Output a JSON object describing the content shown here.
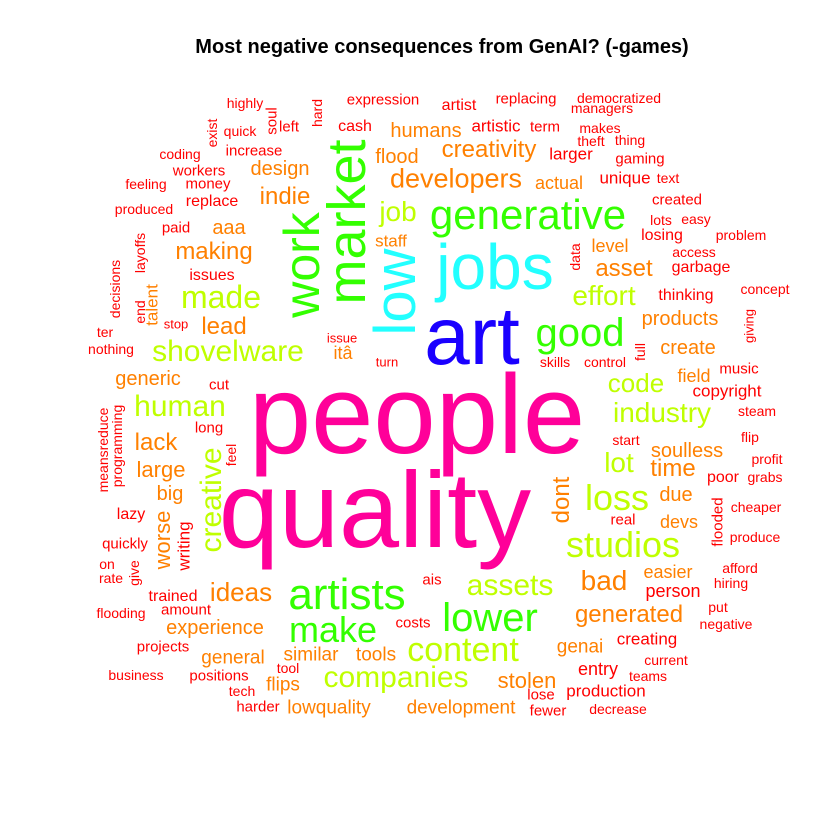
{
  "chart_data": {
    "type": "wordcloud",
    "title": "Most negative consequences from GenAI? (-games)",
    "palette": {
      "red": "#ff0000",
      "orange": "#ff8000",
      "lime": "#bfff00",
      "green": "#33ff00",
      "cyan": "#22ffff",
      "blue": "#1a00ff",
      "magenta": "#ff0099"
    },
    "words": [
      {
        "text": "people",
        "color": "magenta",
        "size": 112
      },
      {
        "text": "quality",
        "color": "magenta",
        "size": 108
      },
      {
        "text": "art",
        "color": "blue",
        "size": 82
      },
      {
        "text": "jobs",
        "color": "cyan",
        "size": 64
      },
      {
        "text": "low",
        "color": "cyan",
        "size": 58
      },
      {
        "text": "market",
        "color": "green",
        "size": 54
      },
      {
        "text": "work",
        "color": "green",
        "size": 50
      },
      {
        "text": "artists",
        "color": "green",
        "size": 44
      },
      {
        "text": "generative",
        "color": "green",
        "size": 42
      },
      {
        "text": "lower",
        "color": "green",
        "size": 40
      },
      {
        "text": "good",
        "color": "green",
        "size": 40
      },
      {
        "text": "make",
        "color": "green",
        "size": 36
      },
      {
        "text": "studios",
        "color": "lime",
        "size": 36
      },
      {
        "text": "loss",
        "color": "lime",
        "size": 36
      },
      {
        "text": "content",
        "color": "lime",
        "size": 34
      },
      {
        "text": "made",
        "color": "lime",
        "size": 32
      },
      {
        "text": "human",
        "color": "lime",
        "size": 30
      },
      {
        "text": "creative",
        "color": "lime",
        "size": 30
      },
      {
        "text": "companies",
        "color": "lime",
        "size": 30
      },
      {
        "text": "assets",
        "color": "lime",
        "size": 30
      },
      {
        "text": "shovelware",
        "color": "lime",
        "size": 30
      },
      {
        "text": "industry",
        "color": "lime",
        "size": 28
      },
      {
        "text": "bad",
        "color": "orange",
        "size": 28
      },
      {
        "text": "effort",
        "color": "lime",
        "size": 28
      },
      {
        "text": "lot",
        "color": "lime",
        "size": 28
      },
      {
        "text": "job",
        "color": "lime",
        "size": 28
      },
      {
        "text": "developers",
        "color": "orange",
        "size": 27
      },
      {
        "text": "ideas",
        "color": "orange",
        "size": 26
      },
      {
        "text": "code",
        "color": "lime",
        "size": 26
      },
      {
        "text": "creativity",
        "color": "orange",
        "size": 24
      },
      {
        "text": "generated",
        "color": "orange",
        "size": 24
      },
      {
        "text": "lead",
        "color": "orange",
        "size": 24
      },
      {
        "text": "asset",
        "color": "orange",
        "size": 24
      },
      {
        "text": "indie",
        "color": "orange",
        "size": 24
      },
      {
        "text": "lack",
        "color": "orange",
        "size": 24
      },
      {
        "text": "making",
        "color": "orange",
        "size": 24
      },
      {
        "text": "dont",
        "color": "orange",
        "size": 24
      },
      {
        "text": "time",
        "color": "orange",
        "size": 24
      },
      {
        "text": "stolen",
        "color": "orange",
        "size": 22
      },
      {
        "text": "worse",
        "color": "orange",
        "size": 22
      },
      {
        "text": "large",
        "color": "orange",
        "size": 22
      },
      {
        "text": "experience",
        "color": "orange",
        "size": 20
      },
      {
        "text": "design",
        "color": "orange",
        "size": 20
      },
      {
        "text": "soulless",
        "color": "orange",
        "size": 20
      },
      {
        "text": "generic",
        "color": "orange",
        "size": 20
      },
      {
        "text": "products",
        "color": "orange",
        "size": 20
      },
      {
        "text": "create",
        "color": "orange",
        "size": 20
      },
      {
        "text": "big",
        "color": "orange",
        "size": 20
      },
      {
        "text": "flood",
        "color": "orange",
        "size": 20
      },
      {
        "text": "aaa",
        "color": "orange",
        "size": 20
      },
      {
        "text": "due",
        "color": "orange",
        "size": 20
      },
      {
        "text": "humans",
        "color": "orange",
        "size": 20
      },
      {
        "text": "lowquality",
        "color": "orange",
        "size": 19
      },
      {
        "text": "development",
        "color": "orange",
        "size": 19
      },
      {
        "text": "similar",
        "color": "orange",
        "size": 19
      },
      {
        "text": "tools",
        "color": "orange",
        "size": 19
      },
      {
        "text": "general",
        "color": "orange",
        "size": 19
      },
      {
        "text": "genai",
        "color": "orange",
        "size": 19
      },
      {
        "text": "flips",
        "color": "orange",
        "size": 19
      },
      {
        "text": "devs",
        "color": "orange",
        "size": 18
      },
      {
        "text": "easier",
        "color": "orange",
        "size": 18
      },
      {
        "text": "level",
        "color": "orange",
        "size": 18
      },
      {
        "text": "actual",
        "color": "orange",
        "size": 18
      },
      {
        "text": "staff",
        "color": "orange",
        "size": 17
      },
      {
        "text": "talent",
        "color": "orange",
        "size": 17
      },
      {
        "text": "itâ",
        "color": "orange",
        "size": 18
      },
      {
        "text": "writing",
        "color": "red",
        "size": 17
      },
      {
        "text": "field",
        "color": "orange",
        "size": 18
      },
      {
        "text": "entry",
        "color": "red",
        "size": 18
      },
      {
        "text": "person",
        "color": "red",
        "size": 18
      },
      {
        "text": "creating",
        "color": "red",
        "size": 17
      },
      {
        "text": "production",
        "color": "red",
        "size": 17
      },
      {
        "text": "copyright",
        "color": "red",
        "size": 17
      },
      {
        "text": "artistic",
        "color": "red",
        "size": 17
      },
      {
        "text": "larger",
        "color": "red",
        "size": 17
      },
      {
        "text": "unique",
        "color": "red",
        "size": 17
      },
      {
        "text": "losing",
        "color": "red",
        "size": 16
      },
      {
        "text": "thinking",
        "color": "red",
        "size": 16
      },
      {
        "text": "garbage",
        "color": "red",
        "size": 16
      },
      {
        "text": "trained",
        "color": "red",
        "size": 16
      },
      {
        "text": "amount",
        "color": "red",
        "size": 15
      },
      {
        "text": "projects",
        "color": "red",
        "size": 15
      },
      {
        "text": "quickly",
        "color": "red",
        "size": 15
      },
      {
        "text": "lazy",
        "color": "red",
        "size": 16
      },
      {
        "text": "poor",
        "color": "red",
        "size": 16
      },
      {
        "text": "cash",
        "color": "red",
        "size": 16
      },
      {
        "text": "artist",
        "color": "red",
        "size": 16
      },
      {
        "text": "expression",
        "color": "red",
        "size": 15
      },
      {
        "text": "replacing",
        "color": "red",
        "size": 15
      },
      {
        "text": "democratized",
        "color": "red",
        "size": 14
      },
      {
        "text": "term",
        "color": "red",
        "size": 15
      },
      {
        "text": "managers",
        "color": "red",
        "size": 14
      },
      {
        "text": "makes",
        "color": "red",
        "size": 14
      },
      {
        "text": "theft",
        "color": "red",
        "size": 14
      },
      {
        "text": "thing",
        "color": "red",
        "size": 14
      },
      {
        "text": "gaming",
        "color": "red",
        "size": 15
      },
      {
        "text": "text",
        "color": "red",
        "size": 14
      },
      {
        "text": "created",
        "color": "red",
        "size": 15
      },
      {
        "text": "lots",
        "color": "red",
        "size": 14
      },
      {
        "text": "easy",
        "color": "red",
        "size": 14
      },
      {
        "text": "access",
        "color": "red",
        "size": 14
      },
      {
        "text": "problem",
        "color": "red",
        "size": 14
      },
      {
        "text": "concept",
        "color": "red",
        "size": 14
      },
      {
        "text": "giving",
        "color": "red",
        "size": 13
      },
      {
        "text": "music",
        "color": "red",
        "size": 15
      },
      {
        "text": "steam",
        "color": "red",
        "size": 14
      },
      {
        "text": "flip",
        "color": "red",
        "size": 14
      },
      {
        "text": "profit",
        "color": "red",
        "size": 14
      },
      {
        "text": "grabs",
        "color": "red",
        "size": 14
      },
      {
        "text": "cheaper",
        "color": "red",
        "size": 14
      },
      {
        "text": "flooded",
        "color": "red",
        "size": 15
      },
      {
        "text": "produce",
        "color": "red",
        "size": 14
      },
      {
        "text": "afford",
        "color": "red",
        "size": 14
      },
      {
        "text": "hiring",
        "color": "red",
        "size": 14
      },
      {
        "text": "put",
        "color": "red",
        "size": 14
      },
      {
        "text": "negative",
        "color": "red",
        "size": 14
      },
      {
        "text": "current",
        "color": "red",
        "size": 14
      },
      {
        "text": "teams",
        "color": "red",
        "size": 14
      },
      {
        "text": "decrease",
        "color": "red",
        "size": 14
      },
      {
        "text": "fewer",
        "color": "red",
        "size": 15
      },
      {
        "text": "lose",
        "color": "red",
        "size": 15
      },
      {
        "text": "harder",
        "color": "red",
        "size": 15
      },
      {
        "text": "tech",
        "color": "red",
        "size": 14
      },
      {
        "text": "tool",
        "color": "red",
        "size": 14
      },
      {
        "text": "positions",
        "color": "red",
        "size": 15
      },
      {
        "text": "business",
        "color": "red",
        "size": 14
      },
      {
        "text": "flooding",
        "color": "red",
        "size": 14
      },
      {
        "text": "rate",
        "color": "red",
        "size": 14
      },
      {
        "text": "on",
        "color": "red",
        "size": 14
      },
      {
        "text": "give",
        "color": "red",
        "size": 14
      },
      {
        "text": "programming",
        "color": "red",
        "size": 14
      },
      {
        "text": "meansreduce",
        "color": "red",
        "size": 14
      },
      {
        "text": "feel",
        "color": "red",
        "size": 14
      },
      {
        "text": "long",
        "color": "red",
        "size": 15
      },
      {
        "text": "cut",
        "color": "red",
        "size": 15
      },
      {
        "text": "stop",
        "color": "red",
        "size": 13
      },
      {
        "text": "end",
        "color": "red",
        "size": 14
      },
      {
        "text": "decisions",
        "color": "red",
        "size": 14
      },
      {
        "text": "layoffs",
        "color": "red",
        "size": 14
      },
      {
        "text": "issues",
        "color": "red",
        "size": 16
      },
      {
        "text": "paid",
        "color": "red",
        "size": 15
      },
      {
        "text": "produced",
        "color": "red",
        "size": 14
      },
      {
        "text": "replace",
        "color": "red",
        "size": 16
      },
      {
        "text": "feeling",
        "color": "red",
        "size": 14
      },
      {
        "text": "money",
        "color": "red",
        "size": 15
      },
      {
        "text": "workers",
        "color": "red",
        "size": 15
      },
      {
        "text": "coding",
        "color": "red",
        "size": 14
      },
      {
        "text": "increase",
        "color": "red",
        "size": 15
      },
      {
        "text": "quick",
        "color": "red",
        "size": 14
      },
      {
        "text": "exist",
        "color": "red",
        "size": 14
      },
      {
        "text": "highly",
        "color": "red",
        "size": 14
      },
      {
        "text": "soul",
        "color": "red",
        "size": 15
      },
      {
        "text": "left",
        "color": "red",
        "size": 15
      },
      {
        "text": "hard",
        "color": "red",
        "size": 14
      },
      {
        "text": "issue",
        "color": "red",
        "size": 13
      },
      {
        "text": "turn",
        "color": "red",
        "size": 13
      },
      {
        "text": "skills",
        "color": "red",
        "size": 14
      },
      {
        "text": "control",
        "color": "red",
        "size": 14
      },
      {
        "text": "full",
        "color": "red",
        "size": 14
      },
      {
        "text": "data",
        "color": "red",
        "size": 14
      },
      {
        "text": "start",
        "color": "red",
        "size": 14
      },
      {
        "text": "real",
        "color": "red",
        "size": 15
      },
      {
        "text": "costs",
        "color": "red",
        "size": 15
      },
      {
        "text": "ais",
        "color": "red",
        "size": 15
      },
      {
        "text": "nothing",
        "color": "red",
        "size": 14
      },
      {
        "text": "ter",
        "color": "red",
        "size": 14
      }
    ]
  }
}
